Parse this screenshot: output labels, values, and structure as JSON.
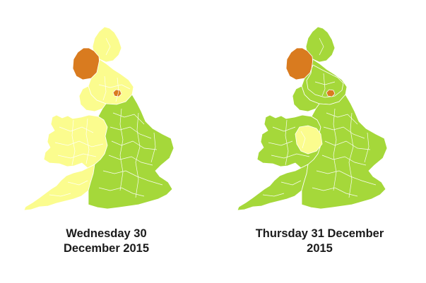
{
  "maps": [
    {
      "caption_line1": "Wednesday 30",
      "caption_line2": "December 2015"
    },
    {
      "caption_line1": "Thursday 31 December",
      "caption_line2": "2015"
    }
  ],
  "colors": {
    "green": "#a5d83a",
    "yellow": "#fbfc8e",
    "orange": "#d97b1f",
    "border": "#ffffff"
  }
}
